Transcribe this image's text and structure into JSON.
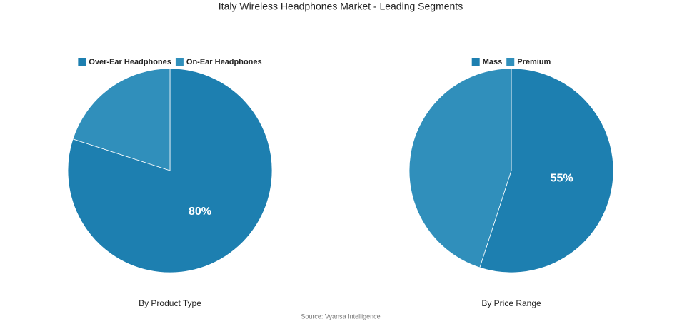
{
  "title": "Italy Wireless Headphones Market - Leading Segments",
  "source": "Source: Vyansa Intelligence",
  "chart_data": [
    {
      "type": "pie",
      "title": "By Product Type",
      "categories": [
        "Over-Ear Headphones",
        "On-Ear Headphones"
      ],
      "values": [
        80,
        20
      ],
      "value_labels": [
        "80%",
        null
      ],
      "colors": [
        "#1d7fb0",
        "#308fbb"
      ],
      "legend": "top"
    },
    {
      "type": "pie",
      "title": "By Price Range",
      "categories": [
        "Mass",
        "Premium"
      ],
      "values": [
        55,
        45
      ],
      "value_labels": [
        "55%",
        null
      ],
      "colors": [
        "#1d7fb0",
        "#308fbb"
      ],
      "legend": "top"
    }
  ]
}
